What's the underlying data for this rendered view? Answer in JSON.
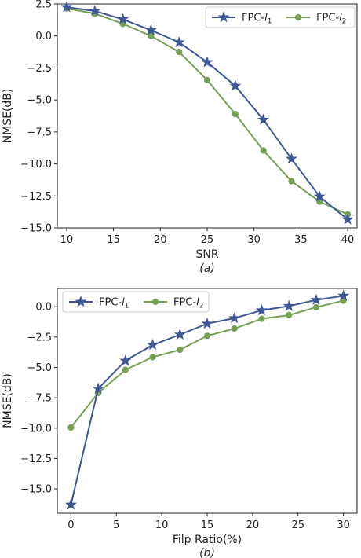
{
  "chart_data": [
    {
      "type": "line",
      "caption": "(a)",
      "xlabel": "SNR",
      "ylabel": "NMSE(dB)",
      "xlim": [
        9,
        41
      ],
      "ylim": [
        -15,
        2.5
      ],
      "xticks": [
        10,
        15,
        20,
        25,
        30,
        35,
        40
      ],
      "yticks": [
        2.5,
        0.0,
        -2.5,
        -5.0,
        -7.5,
        -10.0,
        -12.5,
        -15.0
      ],
      "grid": false,
      "legend_position": "top-right",
      "legend_layout": "horizontal",
      "x": [
        10,
        13,
        16,
        19,
        22,
        25,
        28,
        31,
        34,
        37,
        40
      ],
      "series": [
        {
          "name": "FPC-l1",
          "name_base": "FPC-",
          "name_var": "l",
          "name_sub": "1",
          "marker": "star",
          "color": "#3f5895",
          "values": [
            2.25,
            1.95,
            1.3,
            0.45,
            -0.5,
            -2.05,
            -3.9,
            -6.55,
            -9.6,
            -12.55,
            -14.35
          ]
        },
        {
          "name": "FPC-l2",
          "name_base": "FPC-",
          "name_var": "l",
          "name_sub": "2",
          "marker": "circle",
          "color": "#76a155",
          "values": [
            2.15,
            1.75,
            0.95,
            0.0,
            -1.25,
            -3.45,
            -6.1,
            -8.95,
            -11.35,
            -12.95,
            -13.95
          ]
        }
      ]
    },
    {
      "type": "line",
      "caption": "(b)",
      "xlabel": "Filp Ratio(%)",
      "ylabel": "NMSE(dB)",
      "xlim": [
        -1.5,
        31.5
      ],
      "ylim": [
        -17,
        1.5
      ],
      "xticks": [
        0,
        5,
        10,
        15,
        20,
        25,
        30
      ],
      "yticks": [
        0.0,
        -2.5,
        -5.0,
        -7.5,
        -10.0,
        -12.5,
        -15.0
      ],
      "grid": false,
      "legend_position": "top-left",
      "legend_layout": "horizontal",
      "x": [
        0,
        3,
        6,
        9,
        12,
        15,
        18,
        21,
        24,
        27,
        30
      ],
      "series": [
        {
          "name": "FPC-l1",
          "name_base": "FPC-",
          "name_var": "l",
          "name_sub": "1",
          "marker": "star",
          "color": "#3f5895",
          "values": [
            -16.3,
            -6.75,
            -4.45,
            -3.15,
            -2.3,
            -1.4,
            -0.95,
            -0.3,
            0.05,
            0.55,
            0.9
          ]
        },
        {
          "name": "FPC-l2",
          "name_base": "FPC-",
          "name_var": "l",
          "name_sub": "2",
          "marker": "circle",
          "color": "#76a155",
          "values": [
            -9.95,
            -7.1,
            -5.2,
            -4.15,
            -3.55,
            -2.4,
            -1.8,
            -1.0,
            -0.7,
            -0.05,
            0.5
          ]
        }
      ]
    }
  ]
}
